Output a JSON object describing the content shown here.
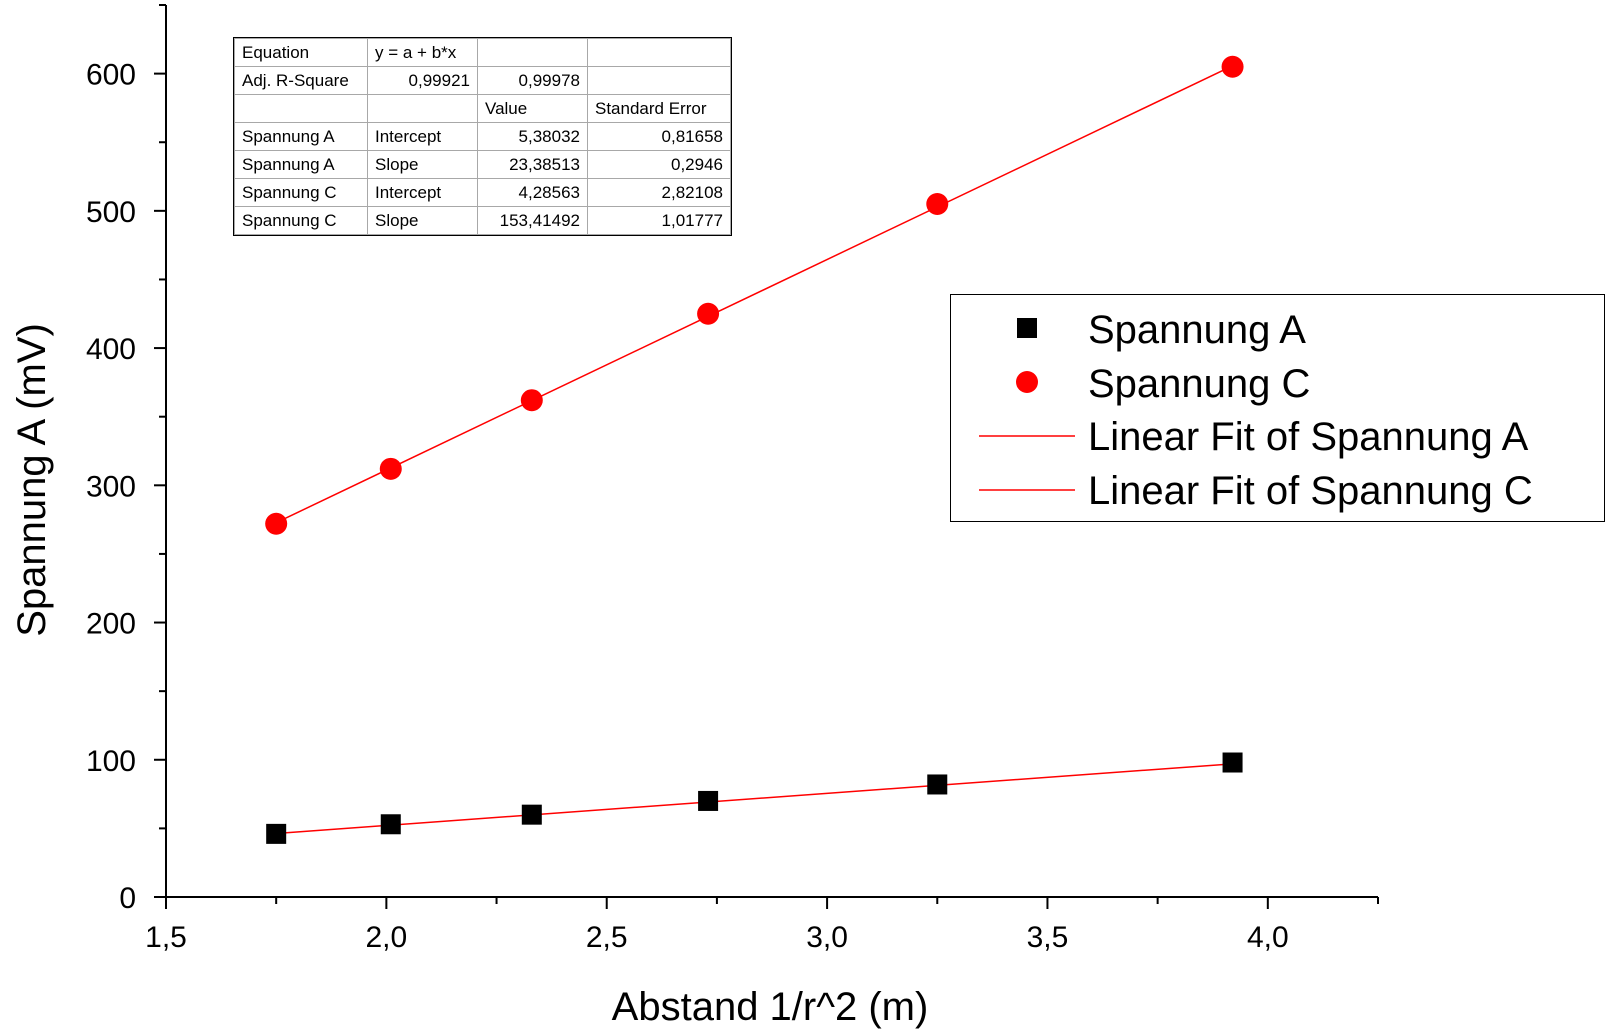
{
  "chart_data": {
    "type": "scatter",
    "xlabel": "Abstand 1/r^2 (m)",
    "ylabel": "Spannung A (mV)",
    "xlim": [
      1.5,
      4.25
    ],
    "ylim": [
      0,
      650
    ],
    "xticks": [
      1.5,
      2.0,
      2.5,
      3.0,
      3.5,
      4.0
    ],
    "xtick_labels": [
      "1,5",
      "2,0",
      "2,5",
      "3,0",
      "3,5",
      "4,0"
    ],
    "yticks": [
      0,
      100,
      200,
      300,
      400,
      500,
      600
    ],
    "ytick_labels": [
      "0",
      "100",
      "200",
      "300",
      "400",
      "500",
      "600"
    ],
    "series": [
      {
        "name": "Spannung A",
        "marker": "square",
        "color": "#000000",
        "x": [
          1.75,
          2.01,
          2.33,
          2.73,
          3.25,
          3.92
        ],
        "y": [
          46,
          53,
          60,
          70,
          82,
          98
        ]
      },
      {
        "name": "Spannung C",
        "marker": "circle",
        "color": "#ff0000",
        "x": [
          1.75,
          2.01,
          2.33,
          2.73,
          3.25,
          3.92
        ],
        "y": [
          272,
          312,
          362,
          425,
          505,
          605
        ]
      }
    ],
    "fits": [
      {
        "name": "Linear Fit of Spannung A",
        "color": "#ff0000",
        "intercept": 5.38032,
        "slope": 23.38513,
        "x_range": [
          1.75,
          3.92
        ]
      },
      {
        "name": "Linear Fit of Spannung C",
        "color": "#ff0000",
        "intercept": 4.28563,
        "slope": 153.41492,
        "x_range": [
          1.75,
          3.92
        ]
      }
    ],
    "legend_position": "right",
    "grid": false
  },
  "stats_table": {
    "rows": [
      [
        "Equation",
        "y = a + b*x",
        "",
        ""
      ],
      [
        "Adj. R-Square",
        "0,99921",
        "0,99978",
        ""
      ],
      [
        "",
        "",
        "Value",
        "Standard Error"
      ],
      [
        "Spannung A",
        "Intercept",
        "5,38032",
        "0,81658"
      ],
      [
        "Spannung A",
        "Slope",
        "23,38513",
        "0,2946"
      ],
      [
        "Spannung C",
        "Intercept",
        "4,28563",
        "2,82108"
      ],
      [
        "Spannung C",
        "Slope",
        "153,41492",
        "1,01777"
      ]
    ]
  }
}
